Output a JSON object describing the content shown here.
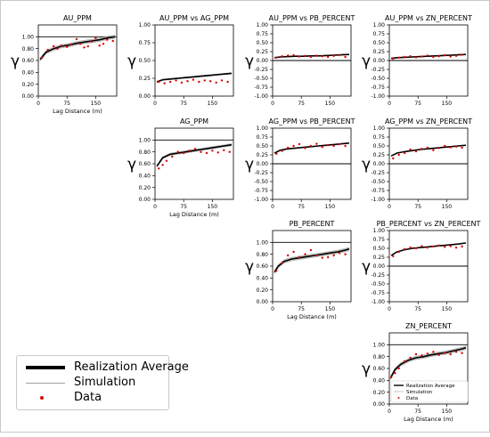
{
  "chart_data": [
    {
      "type": "line",
      "title": "AU_PPM",
      "ylabel": "γ",
      "xlabel": "Lag Distance (m)",
      "xlim": [
        0,
        205
      ],
      "ylim": [
        0,
        1.2
      ],
      "yticks": [
        "0.00",
        "0.20",
        "0.40",
        "0.60",
        "0.80",
        "1.00"
      ],
      "xticks": [
        "0",
        "75",
        "150"
      ],
      "sill": 1.0,
      "average": {
        "x": [
          5,
          20,
          40,
          60,
          80,
          100,
          120,
          140,
          160,
          180,
          200
        ],
        "y": [
          0.62,
          0.74,
          0.8,
          0.84,
          0.86,
          0.89,
          0.91,
          0.93,
          0.95,
          0.98,
          1.0
        ]
      },
      "band": 0.03,
      "data": {
        "x": [
          10,
          25,
          40,
          50,
          60,
          75,
          85,
          100,
          110,
          120,
          130,
          140,
          150,
          160,
          170,
          180,
          195
        ],
        "y": [
          0.65,
          0.78,
          0.84,
          0.8,
          0.85,
          0.83,
          0.87,
          0.96,
          0.88,
          0.82,
          0.84,
          0.92,
          0.98,
          0.85,
          0.88,
          0.95,
          0.93
        ]
      }
    },
    {
      "type": "line",
      "title": "AU_PPM vs AG_PPM",
      "ylabel": "γ",
      "xlabel": "",
      "xlim": [
        0,
        205
      ],
      "ylim": [
        0,
        1.0
      ],
      "yticks": [
        "0.00",
        "0.25",
        "0.50",
        "0.75",
        "1.00"
      ],
      "xticks": [
        "0",
        "75",
        "150"
      ],
      "sill": null,
      "average": {
        "x": [
          5,
          20,
          40,
          60,
          80,
          100,
          120,
          140,
          160,
          180,
          200
        ],
        "y": [
          0.2,
          0.23,
          0.24,
          0.25,
          0.26,
          0.27,
          0.28,
          0.29,
          0.3,
          0.31,
          0.32
        ]
      },
      "band": 0.01,
      "data": {
        "x": [
          10,
          25,
          40,
          55,
          70,
          85,
          100,
          115,
          130,
          145,
          160,
          175,
          190
        ],
        "y": [
          0.2,
          0.18,
          0.2,
          0.22,
          0.19,
          0.21,
          0.23,
          0.2,
          0.22,
          0.21,
          0.19,
          0.22,
          0.2
        ]
      }
    },
    {
      "type": "line",
      "title": "AU_PPM vs PB_PERCENT",
      "ylabel": "γ",
      "xlabel": "",
      "xlim": [
        0,
        205
      ],
      "ylim": [
        -1.0,
        1.0
      ],
      "yticks": [
        "-1.00",
        "-0.75",
        "-0.50",
        "-0.25",
        "0.00",
        "0.25",
        "0.50",
        "0.75",
        "1.00"
      ],
      "xticks": [
        "0",
        "75",
        "150"
      ],
      "sill": 0.0,
      "average": {
        "x": [
          5,
          20,
          40,
          60,
          80,
          100,
          120,
          140,
          160,
          180,
          200
        ],
        "y": [
          0.08,
          0.1,
          0.11,
          0.12,
          0.12,
          0.13,
          0.13,
          0.14,
          0.15,
          0.16,
          0.17
        ]
      },
      "band": 0.01,
      "data": {
        "x": [
          10,
          25,
          40,
          55,
          70,
          85,
          100,
          115,
          130,
          145,
          160,
          175,
          190
        ],
        "y": [
          0.08,
          0.12,
          0.14,
          0.15,
          0.11,
          0.13,
          0.1,
          0.14,
          0.12,
          0.1,
          0.13,
          0.15,
          0.1
        ]
      }
    },
    {
      "type": "line",
      "title": "AU_PPM vs ZN_PERCENT",
      "ylabel": "γ",
      "xlabel": "",
      "xlim": [
        0,
        205
      ],
      "ylim": [
        -1.0,
        1.0
      ],
      "yticks": [
        "-1.00",
        "-0.75",
        "-0.50",
        "-0.25",
        "0.00",
        "0.25",
        "0.50",
        "0.75",
        "1.00"
      ],
      "xticks": [
        "0",
        "75",
        "150"
      ],
      "sill": 0.0,
      "average": {
        "x": [
          5,
          20,
          40,
          60,
          80,
          100,
          120,
          140,
          160,
          180,
          200
        ],
        "y": [
          0.06,
          0.08,
          0.09,
          0.1,
          0.11,
          0.12,
          0.13,
          0.14,
          0.15,
          0.16,
          0.17
        ]
      },
      "band": 0.01,
      "data": {
        "x": [
          10,
          25,
          40,
          55,
          70,
          85,
          100,
          115,
          130,
          145,
          160,
          175,
          190
        ],
        "y": [
          0.05,
          0.08,
          0.1,
          0.12,
          0.09,
          0.11,
          0.14,
          0.1,
          0.12,
          0.15,
          0.11,
          0.13,
          0.16
        ]
      }
    },
    {
      "type": "line",
      "title": "AG_PPM",
      "ylabel": "γ",
      "xlabel": "Lag Distance (m)",
      "xlim": [
        0,
        205
      ],
      "ylim": [
        0,
        1.2
      ],
      "yticks": [
        "0.00",
        "0.20",
        "0.40",
        "0.60",
        "0.80",
        "1.00"
      ],
      "xticks": [
        "0",
        "75",
        "150"
      ],
      "sill": 1.0,
      "average": {
        "x": [
          5,
          20,
          40,
          60,
          80,
          100,
          120,
          140,
          160,
          180,
          200
        ],
        "y": [
          0.56,
          0.7,
          0.76,
          0.78,
          0.8,
          0.82,
          0.84,
          0.86,
          0.88,
          0.9,
          0.92
        ]
      },
      "band": 0.02,
      "data": {
        "x": [
          10,
          20,
          30,
          45,
          60,
          75,
          90,
          105,
          120,
          135,
          150,
          165,
          180,
          195
        ],
        "y": [
          0.52,
          0.58,
          0.65,
          0.72,
          0.8,
          0.78,
          0.82,
          0.85,
          0.8,
          0.78,
          0.82,
          0.79,
          0.83,
          0.8
        ]
      }
    },
    {
      "type": "line",
      "title": "AG_PPM vs PB_PERCENT",
      "ylabel": "γ",
      "xlabel": "",
      "xlim": [
        0,
        205
      ],
      "ylim": [
        -1.0,
        1.0
      ],
      "yticks": [
        "-1.00",
        "-0.75",
        "-0.50",
        "-0.25",
        "0.00",
        "0.25",
        "0.50",
        "0.75",
        "1.00"
      ],
      "xticks": [
        "0",
        "75",
        "150"
      ],
      "sill": 0.0,
      "average": {
        "x": [
          5,
          20,
          40,
          60,
          80,
          100,
          120,
          140,
          160,
          180,
          200
        ],
        "y": [
          0.3,
          0.38,
          0.42,
          0.44,
          0.46,
          0.48,
          0.5,
          0.52,
          0.54,
          0.56,
          0.58
        ]
      },
      "band": 0.01,
      "data": {
        "x": [
          10,
          25,
          40,
          55,
          70,
          85,
          100,
          115,
          130,
          145,
          160,
          175,
          190
        ],
        "y": [
          0.28,
          0.36,
          0.45,
          0.5,
          0.55,
          0.44,
          0.5,
          0.56,
          0.47,
          0.52,
          0.5,
          0.55,
          0.5
        ]
      }
    },
    {
      "type": "line",
      "title": "AG_PPM vs ZN_PERCENT",
      "ylabel": "γ",
      "xlabel": "",
      "xlim": [
        0,
        205
      ],
      "ylim": [
        -1.0,
        1.0
      ],
      "yticks": [
        "-1.00",
        "-0.75",
        "-0.50",
        "-0.25",
        "0.00",
        "0.25",
        "0.50",
        "0.75",
        "1.00"
      ],
      "xticks": [
        "0",
        "75",
        "150"
      ],
      "sill": 0.0,
      "average": {
        "x": [
          5,
          20,
          40,
          60,
          80,
          100,
          120,
          140,
          160,
          180,
          200
        ],
        "y": [
          0.22,
          0.3,
          0.34,
          0.37,
          0.4,
          0.42,
          0.44,
          0.46,
          0.48,
          0.5,
          0.52
        ]
      },
      "band": 0.01,
      "data": {
        "x": [
          10,
          25,
          40,
          55,
          70,
          85,
          100,
          115,
          130,
          145,
          160,
          175,
          190
        ],
        "y": [
          0.15,
          0.25,
          0.3,
          0.4,
          0.35,
          0.42,
          0.45,
          0.38,
          0.44,
          0.5,
          0.46,
          0.48,
          0.45
        ]
      }
    },
    {
      "type": "line",
      "title": "PB_PERCENT",
      "ylabel": "γ",
      "xlabel": "Lag Distance (m)",
      "xlim": [
        0,
        205
      ],
      "ylim": [
        0,
        1.2
      ],
      "yticks": [
        "0.00",
        "0.20",
        "0.40",
        "0.60",
        "0.80",
        "1.00"
      ],
      "xticks": [
        "0",
        "75",
        "150"
      ],
      "sill": 1.0,
      "average": {
        "x": [
          5,
          15,
          30,
          50,
          70,
          90,
          110,
          130,
          150,
          170,
          190,
          200
        ],
        "y": [
          0.5,
          0.6,
          0.68,
          0.72,
          0.74,
          0.76,
          0.78,
          0.8,
          0.82,
          0.84,
          0.87,
          0.89
        ]
      },
      "band": 0.03,
      "data": {
        "x": [
          10,
          25,
          40,
          55,
          70,
          85,
          100,
          115,
          130,
          145,
          160,
          175,
          190
        ],
        "y": [
          0.52,
          0.65,
          0.78,
          0.84,
          0.75,
          0.8,
          0.87,
          0.78,
          0.74,
          0.75,
          0.78,
          0.82,
          0.8
        ]
      }
    },
    {
      "type": "line",
      "title": "PB_PERCENT vs ZN_PERCENT",
      "ylabel": "γ",
      "xlabel": "",
      "xlim": [
        0,
        205
      ],
      "ylim": [
        -1.0,
        1.0
      ],
      "yticks": [
        "-1.00",
        "-0.75",
        "-0.50",
        "-0.25",
        "0.00",
        "0.25",
        "0.50",
        "0.75",
        "1.00"
      ],
      "xticks": [
        "0",
        "75",
        "150"
      ],
      "sill": 0.0,
      "average": {
        "x": [
          5,
          20,
          40,
          60,
          80,
          100,
          120,
          140,
          160,
          180,
          200
        ],
        "y": [
          0.3,
          0.4,
          0.46,
          0.5,
          0.52,
          0.54,
          0.56,
          0.58,
          0.6,
          0.62,
          0.65
        ]
      },
      "band": 0.01,
      "data": {
        "x": [
          10,
          25,
          40,
          55,
          70,
          85,
          100,
          115,
          130,
          145,
          160,
          175,
          190
        ],
        "y": [
          0.28,
          0.4,
          0.48,
          0.52,
          0.5,
          0.56,
          0.52,
          0.55,
          0.58,
          0.54,
          0.56,
          0.52,
          0.55
        ]
      }
    },
    {
      "type": "line",
      "title": "ZN_PERCENT",
      "ylabel": "γ",
      "xlabel": "Lag Distance (m)",
      "xlim": [
        0,
        205
      ],
      "ylim": [
        0,
        1.2
      ],
      "yticks": [
        "0.00",
        "0.20",
        "0.40",
        "0.60",
        "0.80",
        "1.00"
      ],
      "xticks": [
        "0",
        "75",
        "150"
      ],
      "sill": 1.0,
      "average": {
        "x": [
          3,
          15,
          30,
          50,
          70,
          90,
          110,
          130,
          150,
          170,
          190,
          200
        ],
        "y": [
          0.44,
          0.58,
          0.67,
          0.74,
          0.78,
          0.8,
          0.83,
          0.85,
          0.87,
          0.9,
          0.93,
          0.95
        ]
      },
      "band": 0.03,
      "data": {
        "x": [
          5,
          15,
          25,
          40,
          55,
          70,
          85,
          100,
          115,
          130,
          145,
          160,
          175,
          190
        ],
        "y": [
          0.45,
          0.52,
          0.6,
          0.72,
          0.78,
          0.84,
          0.82,
          0.85,
          0.88,
          0.83,
          0.86,
          0.84,
          0.88,
          0.86
        ]
      },
      "legend": {
        "items": [
          "Realization Average",
          "Simulation",
          "Data"
        ]
      }
    }
  ],
  "legend": {
    "average_label": "Realization Average",
    "simulation_label": "Simulation",
    "data_label": "Data"
  },
  "colors": {
    "average": "#000000",
    "simulation": "#a0a0a0",
    "data": "#e00000"
  }
}
